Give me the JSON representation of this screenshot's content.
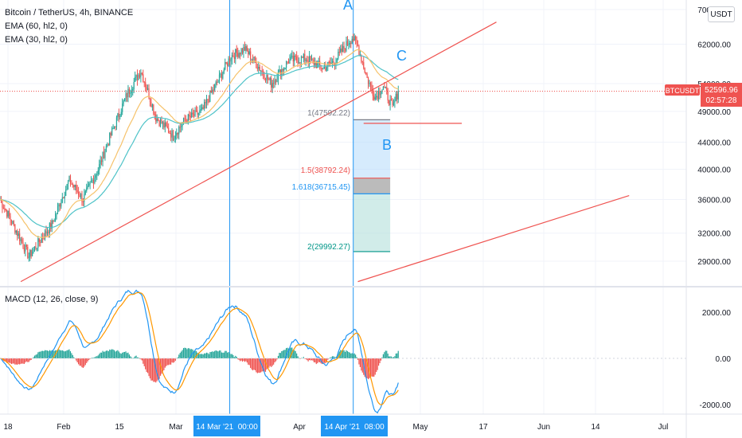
{
  "header": {
    "symbol_line": "Bitcoin / TetherUS, 4h, BINANCE",
    "ema60": "EMA (60, hl2, 0)",
    "ema30": "EMA (30, hl2, 0)",
    "currency_button": "USDT"
  },
  "macd_label": "MACD (12, 26, close, 9)",
  "price_tag": {
    "symbol": "BTCUSDT",
    "price": "52596.96",
    "countdown": "02:57:28"
  },
  "annotations": {
    "A": "A",
    "B": "B",
    "C": "C"
  },
  "fib_labels": {
    "level_1": "1(47592.22)",
    "level_1_5": "1.5(38792.24)",
    "level_1_618": "1.618(36715.45)",
    "level_2": "2(29992.27)"
  },
  "colors": {
    "up": "#26a69a",
    "down": "#ef5350",
    "ema60": "#4fc3c8",
    "ema30": "#f6c26b",
    "trendline": "#ef5350",
    "vline": "#2196f3",
    "macd": "#2196f3",
    "signal": "#ff9800",
    "fib_blue": "#bbdefb",
    "fib_grey": "#9e9e9e",
    "fib_green": "#b2dfdb"
  },
  "chart_data": {
    "type": "candlestick",
    "price_axis": {
      "ticks": [
        70000,
        62000,
        54000,
        49000,
        44000,
        40000,
        36000,
        32000,
        29000
      ],
      "tick_labels": [
        "70000.00",
        "62000.00",
        "54000.00",
        "49000.00",
        "44000.00",
        "40000.00",
        "36000.00",
        "32000.00",
        "29000.00"
      ],
      "scale": "log"
    },
    "macd_axis": {
      "ticks": [
        2000,
        0,
        -2000
      ],
      "tick_labels": [
        "2000.00",
        "0.00",
        "-2000.00"
      ]
    },
    "time_axis": {
      "labels": [
        "18",
        "Feb",
        "15",
        "Mar",
        "Apr",
        "May",
        "17",
        "Jun",
        "14",
        "Jul"
      ],
      "highlights": [
        "14 Mar '21  00:00",
        "14 Apr '21  08:00"
      ]
    },
    "price_anchors": [
      {
        "t": 0,
        "p": 36000
      },
      {
        "t": 15,
        "p": 32000
      },
      {
        "t": 25,
        "p": 29500
      },
      {
        "t": 45,
        "p": 33000
      },
      {
        "t": 60,
        "p": 38500
      },
      {
        "t": 72,
        "p": 36000
      },
      {
        "t": 85,
        "p": 40000
      },
      {
        "t": 100,
        "p": 47000
      },
      {
        "t": 110,
        "p": 52000
      },
      {
        "t": 122,
        "p": 56500
      },
      {
        "t": 135,
        "p": 48000
      },
      {
        "t": 150,
        "p": 45000
      },
      {
        "t": 160,
        "p": 47500
      },
      {
        "t": 175,
        "p": 49000
      },
      {
        "t": 190,
        "p": 55000
      },
      {
        "t": 200,
        "p": 59500
      },
      {
        "t": 212,
        "p": 61000
      },
      {
        "t": 225,
        "p": 57000
      },
      {
        "t": 235,
        "p": 54000
      },
      {
        "t": 250,
        "p": 58500
      },
      {
        "t": 265,
        "p": 59000
      },
      {
        "t": 280,
        "p": 57000
      },
      {
        "t": 290,
        "p": 58500
      },
      {
        "t": 305,
        "p": 63500
      },
      {
        "t": 310,
        "p": 61500
      },
      {
        "t": 318,
        "p": 55000
      },
      {
        "t": 325,
        "p": 51500
      },
      {
        "t": 332,
        "p": 53500
      },
      {
        "t": 340,
        "p": 49500
      },
      {
        "t": 345,
        "p": 52600
      }
    ],
    "trendlines": [
      {
        "t1": 18,
        "p1": 27000,
        "t2": 430,
        "p2": 67000
      },
      {
        "t1": 310,
        "p1": 27000,
        "t2": 545,
        "p2": 36500
      },
      {
        "t1": 315,
        "p1": 47000,
        "t2": 400,
        "p2": 47000
      }
    ],
    "vertical_markers_t": [
      199,
      306
    ],
    "fib": {
      "t_start": 306,
      "t_end": 338,
      "levels": [
        {
          "ratio": "1",
          "price": 47592.22
        },
        {
          "ratio": "1.5",
          "price": 38792.24
        },
        {
          "ratio": "1.618",
          "price": 36715.45
        },
        {
          "ratio": "2",
          "price": 29992.27
        }
      ]
    },
    "last_price": 52596.96
  }
}
